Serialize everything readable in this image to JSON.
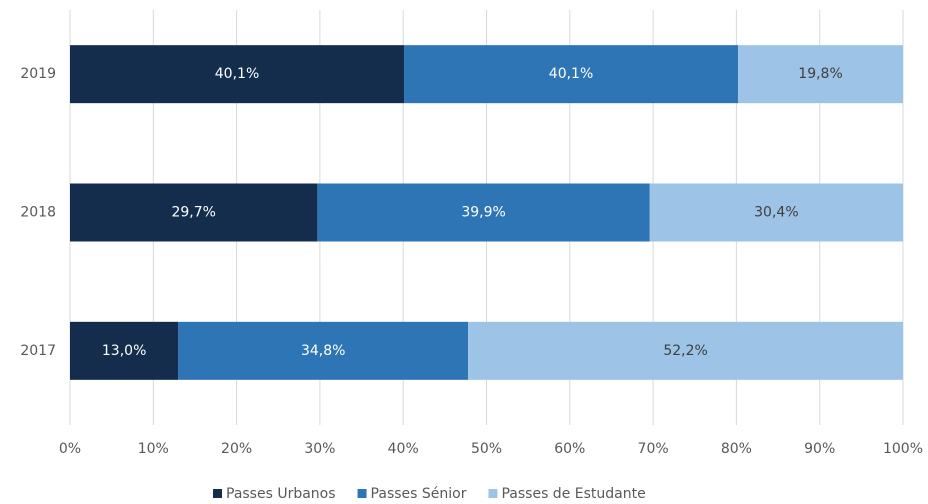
{
  "chart_data": {
    "type": "stacked_bar_horizontal",
    "categories": [
      "2019",
      "2018",
      "2017"
    ],
    "series": [
      {
        "name": "Passes Urbanos",
        "color": "#142d4c",
        "values": [
          40.1,
          29.7,
          13.0
        ],
        "value_labels": [
          "40,1%",
          "29,7%",
          "13,0%"
        ]
      },
      {
        "name": "Passes Sénior",
        "color": "#2e75b6",
        "values": [
          40.1,
          39.9,
          34.8
        ],
        "value_labels": [
          "40,1%",
          "39,9%",
          "34,8%"
        ]
      },
      {
        "name": "Passes de Estudante",
        "color": "#9dc3e6",
        "values": [
          19.8,
          30.4,
          52.2
        ],
        "value_labels": [
          "19,8%",
          "30,4%",
          "52,2%"
        ]
      }
    ],
    "xlim": [
      0,
      100
    ],
    "xticks": [
      {
        "value": 0,
        "label": "0%"
      },
      {
        "value": 10,
        "label": "10%"
      },
      {
        "value": 20,
        "label": "20%"
      },
      {
        "value": 30,
        "label": "30%"
      },
      {
        "value": 40,
        "label": "40%"
      },
      {
        "value": 50,
        "label": "50%"
      },
      {
        "value": 60,
        "label": "60%"
      },
      {
        "value": 70,
        "label": "70%"
      },
      {
        "value": 80,
        "label": "80%"
      },
      {
        "value": 90,
        "label": "90%"
      },
      {
        "value": 100,
        "label": "100%"
      }
    ],
    "grid": true,
    "legend": "bottom"
  }
}
